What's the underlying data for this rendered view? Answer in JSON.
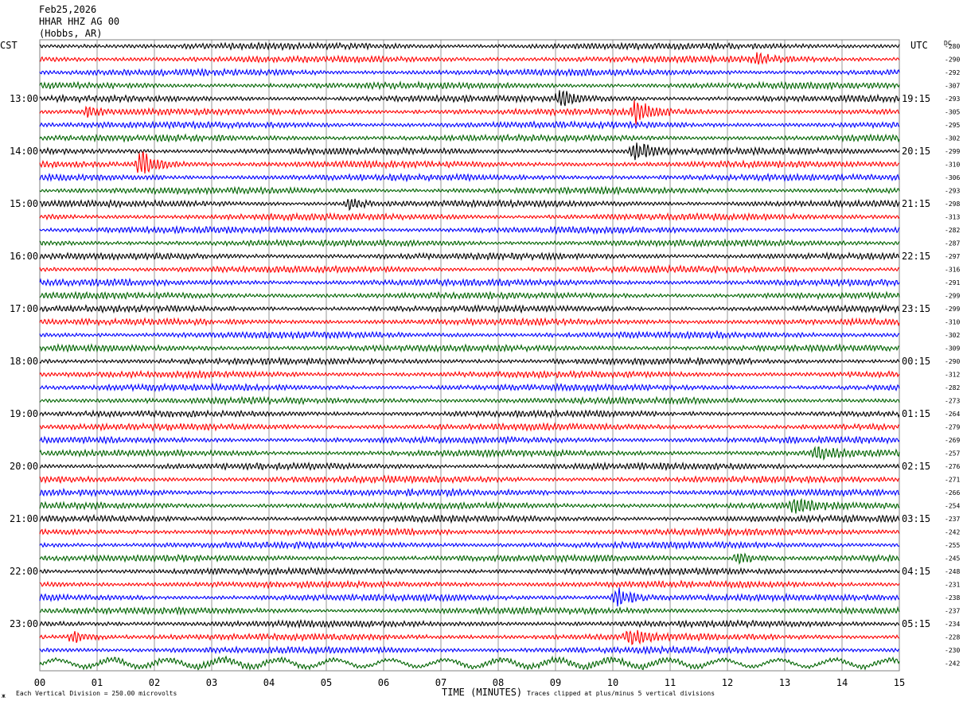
{
  "header": {
    "date": "Feb25,2026",
    "station": "HHAR HHZ AG 00",
    "location": "(Hobbs, AR)"
  },
  "left_timezone": "CST",
  "right_timezone": "UTC",
  "dc_header": "DC",
  "footer": {
    "scale_note": "Each Vertical Division =  250.00 microvolts",
    "xlabel": "TIME (MINUTES)",
    "clip_note": "Traces clipped at plus/minus 5 vertical divisions"
  },
  "colors": {
    "trace_cycle": [
      "#000000",
      "#ff0000",
      "#0000ff",
      "#006400"
    ],
    "grid": "#808080"
  },
  "chart_data": {
    "type": "line",
    "title": "",
    "xlabel": "TIME (MINUTES)",
    "ylabel": "",
    "xlim": [
      0,
      15
    ],
    "x_ticks": [
      "00",
      "01",
      "02",
      "03",
      "04",
      "05",
      "06",
      "07",
      "08",
      "09",
      "10",
      "11",
      "12",
      "13",
      "14",
      "15"
    ],
    "grid": true,
    "trace_count": 48,
    "minutes_per_trace": 15,
    "left_hour_labels": [
      "13:00",
      "14:00",
      "15:00",
      "16:00",
      "17:00",
      "18:00",
      "19:00",
      "20:00",
      "21:00",
      "22:00",
      "23:00"
    ],
    "right_hour_labels": [
      "19:15",
      "20:15",
      "21:15",
      "22:15",
      "23:15",
      "00:15",
      "01:15",
      "02:15",
      "03:15",
      "04:15",
      "05:15"
    ],
    "dc_offsets": [
      -280,
      -290,
      -292,
      -307,
      -293,
      -305,
      -295,
      -302,
      -299,
      -310,
      -306,
      -293,
      -298,
      -313,
      -282,
      -287,
      -297,
      -316,
      -291,
      -299,
      -299,
      -310,
      -302,
      -309,
      -290,
      -312,
      -282,
      -273,
      -264,
      -279,
      -269,
      -257,
      -276,
      -271,
      -266,
      -254,
      -237,
      -242,
      -255,
      -245,
      -248,
      -231,
      -238,
      -237,
      -234,
      -228,
      -230,
      -242
    ],
    "events": [
      {
        "trace": 1,
        "minute": 12.5,
        "amplitude": 1.3
      },
      {
        "trace": 4,
        "minute": 9.1,
        "amplitude": 1.8
      },
      {
        "trace": 5,
        "minute": 10.4,
        "amplitude": 3.0
      },
      {
        "trace": 5,
        "minute": 0.8,
        "amplitude": 1.2
      },
      {
        "trace": 8,
        "minute": 10.4,
        "amplitude": 2.4
      },
      {
        "trace": 9,
        "minute": 1.8,
        "amplitude": 4.0
      },
      {
        "trace": 12,
        "minute": 5.4,
        "amplitude": 1.3
      },
      {
        "trace": 31,
        "minute": 13.6,
        "amplitude": 1.6
      },
      {
        "trace": 35,
        "minute": 13.2,
        "amplitude": 2.0
      },
      {
        "trace": 39,
        "minute": 12.2,
        "amplitude": 1.3
      },
      {
        "trace": 42,
        "minute": 10.1,
        "amplitude": 2.2
      },
      {
        "trace": 45,
        "minute": 10.3,
        "amplitude": 1.7
      },
      {
        "trace": 45,
        "minute": 0.6,
        "amplitude": 1.5
      }
    ]
  }
}
